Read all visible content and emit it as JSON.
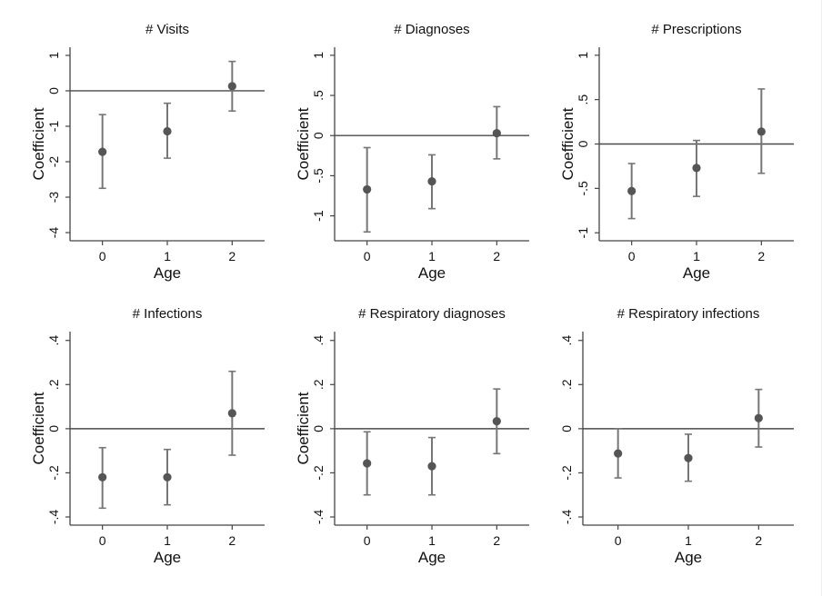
{
  "chart_data": [
    {
      "type": "scatter",
      "title": "# Visits",
      "xlabel": "Age",
      "ylabel": "Coefficient",
      "categories": [
        "0",
        "1",
        "2"
      ],
      "x": [
        0,
        1,
        2
      ],
      "values": [
        -1.72,
        -1.14,
        0.13
      ],
      "ci_lower": [
        -2.75,
        -1.9,
        -0.57
      ],
      "ci_upper": [
        -0.67,
        -0.35,
        0.83
      ],
      "xlim": [
        -0.5,
        2.5
      ],
      "ylim": [
        -4.23,
        1.23
      ],
      "yticks": [
        1,
        0,
        -1,
        -2,
        -3,
        -4
      ],
      "ytick_labels": [
        "1",
        "0",
        "-1",
        "-2",
        "-3",
        "-4"
      ],
      "reference_line_y": 0,
      "grid": false
    },
    {
      "type": "scatter",
      "title": "# Diagnoses",
      "xlabel": "Age",
      "ylabel": "Coefficient",
      "categories": [
        "0",
        "1",
        "2"
      ],
      "x": [
        0,
        1,
        2
      ],
      "values": [
        -0.67,
        -0.57,
        0.03
      ],
      "ci_lower": [
        -1.2,
        -0.91,
        -0.29
      ],
      "ci_upper": [
        -0.15,
        -0.24,
        0.36
      ],
      "xlim": [
        -0.5,
        2.5
      ],
      "ylim": [
        -1.31,
        1.1
      ],
      "yticks": [
        1,
        0.5,
        0,
        -0.5,
        -1
      ],
      "ytick_labels": [
        "1",
        ".5",
        "0",
        "-.5",
        "-1"
      ],
      "reference_line_y": 0,
      "grid": false
    },
    {
      "type": "scatter",
      "title": "# Prescriptions",
      "xlabel": "Age",
      "ylabel": "Coefficient",
      "categories": [
        "0",
        "1",
        "2"
      ],
      "x": [
        0,
        1,
        2
      ],
      "values": [
        -0.53,
        -0.27,
        0.14
      ],
      "ci_lower": [
        -0.84,
        -0.59,
        -0.33
      ],
      "ci_upper": [
        -0.22,
        0.04,
        0.62
      ],
      "xlim": [
        -0.5,
        2.5
      ],
      "ylim": [
        -1.09,
        1.09
      ],
      "yticks": [
        1,
        0.5,
        0,
        -0.5,
        -1
      ],
      "ytick_labels": [
        "1",
        ".5",
        "0",
        "-.5",
        "-1"
      ],
      "reference_line_y": 0,
      "grid": false
    },
    {
      "type": "scatter",
      "title": "# Infections",
      "xlabel": "Age",
      "ylabel": "Coefficient",
      "categories": [
        "0",
        "1",
        "2"
      ],
      "x": [
        0,
        1,
        2
      ],
      "values": [
        -0.22,
        -0.22,
        0.07
      ],
      "ci_lower": [
        -0.36,
        -0.345,
        -0.12
      ],
      "ci_upper": [
        -0.086,
        -0.094,
        0.26
      ],
      "xlim": [
        -0.5,
        2.5
      ],
      "ylim": [
        -0.437,
        0.44
      ],
      "yticks": [
        0.4,
        0.2,
        0,
        -0.2,
        -0.4
      ],
      "ytick_labels": [
        ".4",
        ".2",
        "0",
        "-.2",
        "-.4"
      ],
      "reference_line_y": 0,
      "grid": false
    },
    {
      "type": "scatter",
      "title": "# Respiratory diagnoses",
      "xlabel": "Age",
      "ylabel": "Coefficient",
      "categories": [
        "0",
        "1",
        "2"
      ],
      "x": [
        0,
        1,
        2
      ],
      "values": [
        -0.157,
        -0.17,
        0.034
      ],
      "ci_lower": [
        -0.3,
        -0.3,
        -0.113
      ],
      "ci_upper": [
        -0.014,
        -0.04,
        0.18
      ],
      "xlim": [
        -0.5,
        2.5
      ],
      "ylim": [
        -0.437,
        0.44
      ],
      "yticks": [
        0.4,
        0.2,
        0,
        -0.2,
        -0.4
      ],
      "ytick_labels": [
        ".4",
        ".2",
        "0",
        "-.2",
        "-.4"
      ],
      "reference_line_y": 0,
      "grid": false
    },
    {
      "type": "scatter",
      "title": "# Respiratory infections",
      "xlabel": "Age",
      "ylabel": "",
      "categories": [
        "0",
        "1",
        "2"
      ],
      "x": [
        0,
        1,
        2
      ],
      "values": [
        -0.112,
        -0.133,
        0.048
      ],
      "ci_lower": [
        -0.223,
        -0.238,
        -0.083
      ],
      "ci_upper": [
        0.0,
        -0.025,
        0.178
      ],
      "xlim": [
        -0.5,
        2.5
      ],
      "ylim": [
        -0.437,
        0.44
      ],
      "yticks": [
        0.4,
        0.2,
        0,
        -0.2,
        -0.4
      ],
      "ytick_labels": [
        ".4",
        ".2",
        "0",
        "-.2",
        "-.4"
      ],
      "reference_line_y": 0,
      "grid": false
    }
  ],
  "colors": {
    "marker": "#555555",
    "ci": "#767676",
    "axis": "#444444",
    "reference_line": "#4a4a4a",
    "text": "#111111"
  }
}
